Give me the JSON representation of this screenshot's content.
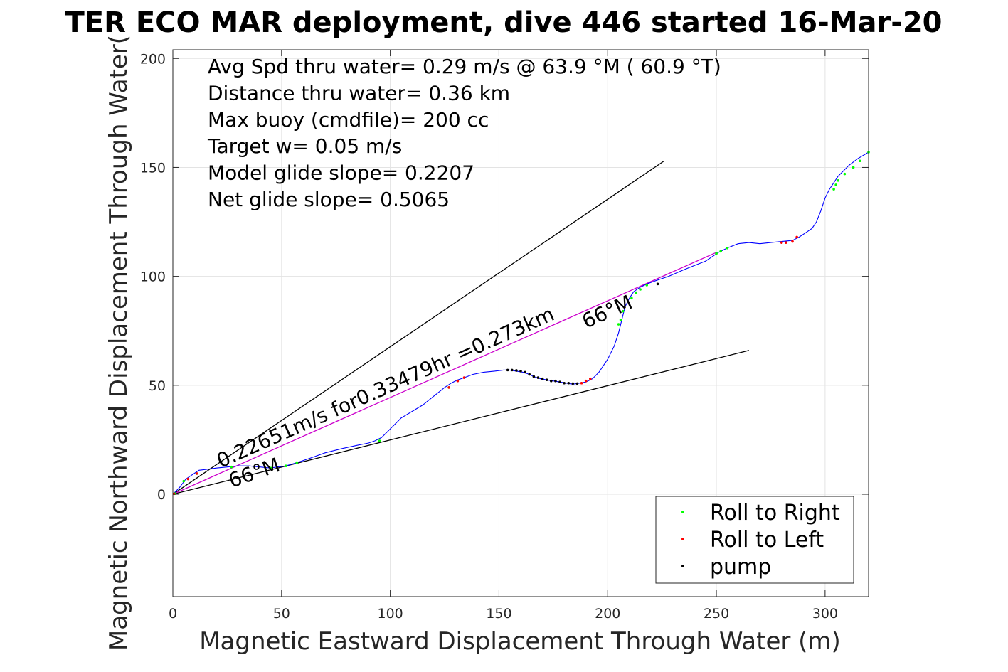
{
  "chart_data": {
    "type": "line",
    "title": "TER ECO MAR deployment, dive 446 started 16-Mar-20",
    "xlabel": "Magnetic Eastward Displacement Through Water (m)",
    "ylabel": "Magnetic Northward Displacement Through Water(",
    "xlim": [
      0,
      320
    ],
    "ylim": [
      -47,
      204
    ],
    "xticks": [
      0,
      50,
      100,
      150,
      200,
      250,
      300
    ],
    "yticks": [
      0,
      50,
      100,
      150,
      200
    ],
    "grid": true,
    "legend_placement": "bottom-right",
    "info_lines": [
      "Avg Spd thru water=  0.29 m/s @  63.9 °M ( 60.9 °T)",
      "Distance thru water=  0.36 km",
      "Max buoy (cmdfile)= 200 cc",
      "Target w= 0.05 m/s",
      "Model glide slope= 0.2207",
      "Net glide slope= 0.5065"
    ],
    "annotations": [
      {
        "text": "0.22651m/s for0.33479hr =0.273km",
        "x": 22,
        "y": 12,
        "angle_deg": 24
      },
      {
        "text": "66°M",
        "x": 27,
        "y": 3,
        "angle_deg": 19
      },
      {
        "text": "66°M",
        "x": 190,
        "y": 76,
        "angle_deg": 24
      }
    ],
    "series": [
      {
        "name": "track",
        "style": "line",
        "color": "#0000ff",
        "x": [
          0,
          3,
          6,
          9,
          12,
          16,
          20,
          25,
          30,
          35,
          40,
          45,
          48,
          52,
          57,
          63,
          70,
          78,
          85,
          90,
          93,
          96,
          100,
          105,
          110,
          115,
          120,
          125,
          128,
          131,
          134,
          138,
          143,
          148,
          152,
          155,
          158,
          161,
          164,
          166,
          169,
          172,
          175,
          178,
          181,
          184,
          187,
          190,
          193,
          196,
          200,
          203,
          205,
          206,
          207,
          208,
          210,
          212,
          215,
          218,
          222,
          228,
          235,
          240,
          245,
          248,
          251,
          255,
          260,
          265,
          270,
          275,
          280,
          285,
          288,
          291,
          294,
          296,
          298,
          300,
          302,
          304,
          306,
          308,
          311,
          315,
          320
        ],
        "y": [
          0,
          3,
          7,
          9,
          11,
          11.5,
          12,
          12.5,
          13,
          13,
          12.5,
          12,
          12.5,
          13,
          14.5,
          16.5,
          19,
          21,
          22.5,
          23.5,
          24.5,
          26,
          30,
          35,
          38,
          41,
          45,
          49,
          51,
          52.5,
          53.5,
          55,
          56,
          56.5,
          57,
          57,
          56.5,
          56,
          55,
          54,
          53,
          52.5,
          52,
          51.5,
          51,
          50.5,
          51,
          51.5,
          53,
          56,
          62,
          68,
          74,
          78,
          82,
          86,
          90,
          93,
          95,
          96.5,
          98,
          100,
          103,
          105,
          107,
          109,
          111,
          113,
          115,
          115.5,
          115,
          115.5,
          116,
          116.5,
          118,
          120,
          122,
          125,
          130,
          136,
          140,
          143,
          146,
          148,
          151,
          154,
          157
        ]
      },
      {
        "name": "Roll to Right",
        "style": "points",
        "color": "#00ff00",
        "x": [
          1,
          5,
          11,
          27,
          45,
          52,
          57,
          95,
          127,
          205,
          206,
          207,
          211,
          213,
          215,
          218,
          250,
          252,
          255,
          304,
          305,
          306,
          309,
          313,
          316,
          320
        ],
        "y": [
          0.3,
          6,
          9.5,
          12.5,
          12,
          13,
          14.5,
          24.5,
          49,
          78,
          80,
          84,
          90,
          92.5,
          94,
          96,
          110.5,
          111.5,
          113,
          140,
          142,
          144,
          147,
          150,
          153,
          157
        ]
      },
      {
        "name": "Roll to Left",
        "style": "points",
        "color": "#ff0000",
        "x": [
          0.5,
          7,
          11,
          127,
          131,
          134,
          188,
          190,
          192,
          280,
          282,
          285,
          287
        ],
        "y": [
          0.2,
          7,
          9.5,
          49,
          52,
          53.5,
          51,
          52,
          53,
          115.5,
          115.5,
          116,
          118
        ]
      },
      {
        "name": "pump",
        "style": "points",
        "color": "#000000",
        "x": [
          154,
          156,
          158,
          160,
          162,
          164,
          166,
          168,
          170,
          172,
          174,
          176,
          178,
          180,
          182,
          184,
          186,
          223
        ],
        "y": [
          57,
          57,
          56.8,
          56.5,
          56,
          55,
          54,
          53.5,
          53,
          52.5,
          52,
          52,
          51.5,
          51,
          51,
          50.8,
          50.8,
          96.5
        ]
      },
      {
        "name": "model glide slope line (upper)",
        "style": "reference-line",
        "color": "#000000",
        "x": [
          0,
          226
        ],
        "y": [
          0,
          153
        ]
      },
      {
        "name": "net glide slope line (lower)",
        "style": "reference-line",
        "color": "#000000",
        "x": [
          0,
          265
        ],
        "y": [
          0,
          66
        ]
      },
      {
        "name": "average heading line",
        "style": "reference-line",
        "color": "#cc00cc",
        "x": [
          0,
          250
        ],
        "y": [
          0,
          111
        ]
      }
    ],
    "legend": [
      {
        "label": "Roll to Right",
        "color": "#00ff00"
      },
      {
        "label": "Roll to Left",
        "color": "#ff0000"
      },
      {
        "label": "pump",
        "color": "#000000"
      }
    ]
  }
}
